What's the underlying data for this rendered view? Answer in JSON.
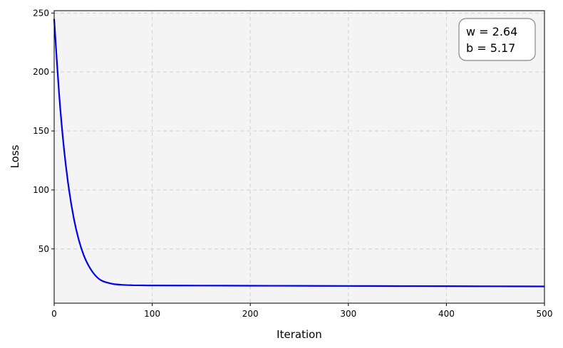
{
  "chart_data": {
    "type": "line",
    "title": "",
    "xlabel": "Iteration",
    "ylabel": "Loss",
    "xlim": [
      0,
      500
    ],
    "ylim": [
      4,
      252
    ],
    "xticks": [
      0,
      100,
      200,
      300,
      400,
      500
    ],
    "yticks": [
      50,
      100,
      150,
      200,
      250
    ],
    "grid": true,
    "series": [
      {
        "color": "#0000ee",
        "x": [
          0,
          5,
          10,
          15,
          20,
          25,
          30,
          35,
          40,
          45,
          50,
          60,
          70,
          80,
          90,
          100,
          150,
          200,
          250,
          300,
          350,
          400,
          450,
          500
        ],
        "y": [
          245,
          182,
          135,
          101,
          76,
          58,
          45,
          36,
          29.5,
          25,
          22.5,
          20.3,
          19.5,
          19.2,
          19.1,
          19,
          18.9,
          18.8,
          18.7,
          18.6,
          18.5,
          18.4,
          18.3,
          18.2
        ]
      }
    ],
    "annotation": {
      "lines": [
        "w = 2.64",
        "b = 5.17"
      ],
      "position": "top-right"
    }
  }
}
